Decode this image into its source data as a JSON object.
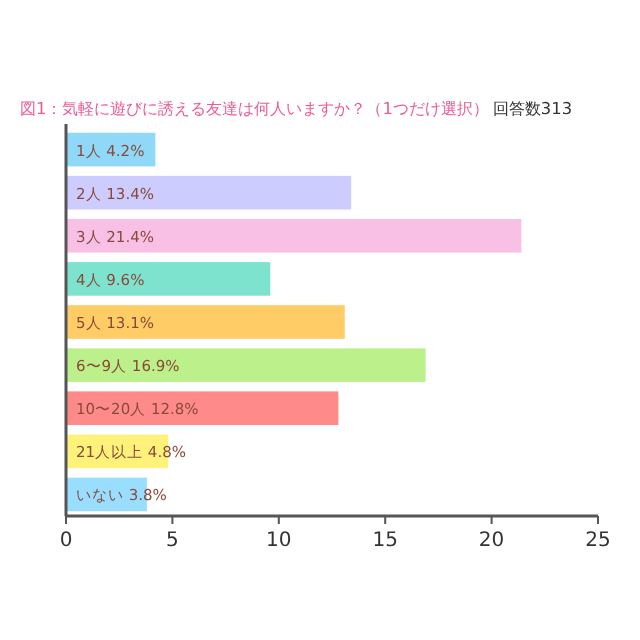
{
  "chart_data": {
    "type": "bar",
    "orientation": "horizontal",
    "title": "図1：気軽に遊びに誘える友達は何人いますか？（1つだけ選択）",
    "subtitle": "回答数313",
    "categories": [
      "1人",
      "2人",
      "3人",
      "4人",
      "5人",
      "6〜9人",
      "10〜20人",
      "21人以上",
      "いない"
    ],
    "values": [
      4.2,
      13.4,
      21.4,
      9.6,
      13.1,
      16.9,
      12.8,
      4.8,
      3.8
    ],
    "value_labels": [
      "4.2%",
      "13.4%",
      "21.4%",
      "9.6%",
      "13.1%",
      "16.9%",
      "12.8%",
      "4.8%",
      "3.8%"
    ],
    "colors": [
      "#8fd8f8",
      "#ccccff",
      "#f9c0e6",
      "#7de3cf",
      "#ffcc66",
      "#bbf08a",
      "#ff8a8a",
      "#fff27a",
      "#99ddff"
    ],
    "xlim": [
      0,
      25
    ],
    "xticks": [
      0,
      5,
      10,
      15,
      20,
      25
    ]
  }
}
